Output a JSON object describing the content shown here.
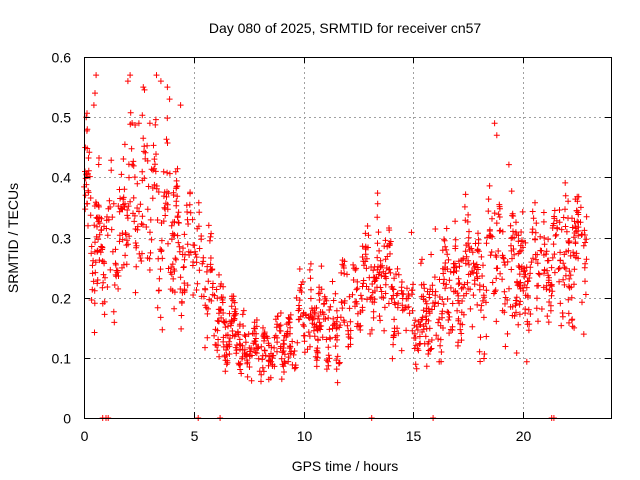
{
  "chart_data": {
    "type": "scatter",
    "title": "Day 080 of 2025, SRMTID for receiver cn57",
    "xlabel": "GPS time / hours",
    "ylabel": "SRMTID / TECUs",
    "xlim": [
      0,
      24
    ],
    "ylim": [
      0,
      0.6
    ],
    "xticks": [
      0,
      5,
      10,
      15,
      20
    ],
    "xtick_labels": [
      "0",
      "5",
      "10",
      "15",
      "20"
    ],
    "yticks": [
      0,
      0.1,
      0.2,
      0.3,
      0.4,
      0.5,
      0.6
    ],
    "ytick_labels": [
      "0",
      "0.1",
      "0.2",
      "0.3",
      "0.4",
      "0.5",
      "0.6"
    ],
    "grid": true,
    "marker": "plus",
    "color": "#ff0000",
    "series": [
      {
        "name": "SRMTID",
        "trend": [
          [
            0.0,
            0.4
          ],
          [
            0.2,
            0.34
          ],
          [
            0.5,
            0.3
          ],
          [
            0.8,
            0.28
          ],
          [
            1.2,
            0.27
          ],
          [
            1.6,
            0.31
          ],
          [
            2.0,
            0.34
          ],
          [
            2.5,
            0.37
          ],
          [
            3.0,
            0.37
          ],
          [
            3.5,
            0.34
          ],
          [
            4.0,
            0.3
          ],
          [
            4.5,
            0.28
          ],
          [
            5.0,
            0.27
          ],
          [
            5.5,
            0.24
          ],
          [
            6.0,
            0.18
          ],
          [
            6.5,
            0.15
          ],
          [
            7.0,
            0.13
          ],
          [
            7.5,
            0.12
          ],
          [
            8.0,
            0.11
          ],
          [
            8.5,
            0.11
          ],
          [
            9.0,
            0.12
          ],
          [
            9.5,
            0.13
          ],
          [
            10.0,
            0.17
          ],
          [
            10.5,
            0.16
          ],
          [
            11.0,
            0.15
          ],
          [
            11.5,
            0.16
          ],
          [
            12.0,
            0.19
          ],
          [
            12.5,
            0.21
          ],
          [
            13.0,
            0.22
          ],
          [
            13.5,
            0.25
          ],
          [
            14.0,
            0.22
          ],
          [
            14.5,
            0.18
          ],
          [
            15.0,
            0.16
          ],
          [
            15.5,
            0.15
          ],
          [
            16.0,
            0.18
          ],
          [
            16.5,
            0.2
          ],
          [
            17.0,
            0.22
          ],
          [
            17.5,
            0.24
          ],
          [
            18.0,
            0.23
          ],
          [
            18.5,
            0.26
          ],
          [
            19.0,
            0.25
          ],
          [
            19.5,
            0.26
          ],
          [
            20.0,
            0.24
          ],
          [
            20.5,
            0.25
          ],
          [
            21.0,
            0.26
          ],
          [
            21.5,
            0.27
          ],
          [
            22.0,
            0.26
          ],
          [
            22.5,
            0.29
          ],
          [
            22.9,
            0.3
          ]
        ],
        "spread": [
          [
            0.0,
            0.08
          ],
          [
            1.0,
            0.1
          ],
          [
            2.0,
            0.11
          ],
          [
            3.5,
            0.12
          ],
          [
            4.5,
            0.1
          ],
          [
            5.5,
            0.08
          ],
          [
            6.5,
            0.05
          ],
          [
            8.0,
            0.04
          ],
          [
            9.5,
            0.05
          ],
          [
            11.0,
            0.06
          ],
          [
            13.0,
            0.08
          ],
          [
            14.5,
            0.07
          ],
          [
            16.0,
            0.07
          ],
          [
            18.0,
            0.09
          ],
          [
            19.5,
            0.09
          ],
          [
            21.0,
            0.08
          ],
          [
            22.9,
            0.09
          ]
        ],
        "peaks": [
          [
            0.1,
            0.5
          ],
          [
            0.15,
            0.48
          ],
          [
            0.55,
            0.57
          ],
          [
            0.5,
            0.54
          ],
          [
            0.45,
            0.52
          ],
          [
            2.1,
            0.57
          ],
          [
            2.0,
            0.56
          ],
          [
            2.7,
            0.55
          ],
          [
            3.3,
            0.57
          ],
          [
            3.5,
            0.56
          ],
          [
            3.8,
            0.55
          ],
          [
            3.9,
            0.53
          ],
          [
            4.4,
            0.52
          ],
          [
            2.5,
            0.49
          ],
          [
            3.0,
            0.49
          ],
          [
            18.7,
            0.49
          ],
          [
            18.8,
            0.47
          ]
        ],
        "zero_points": [
          0.85,
          1.0,
          1.1,
          5.2,
          6.2,
          13.1,
          15.9,
          21.3,
          21.4
        ]
      }
    ]
  }
}
